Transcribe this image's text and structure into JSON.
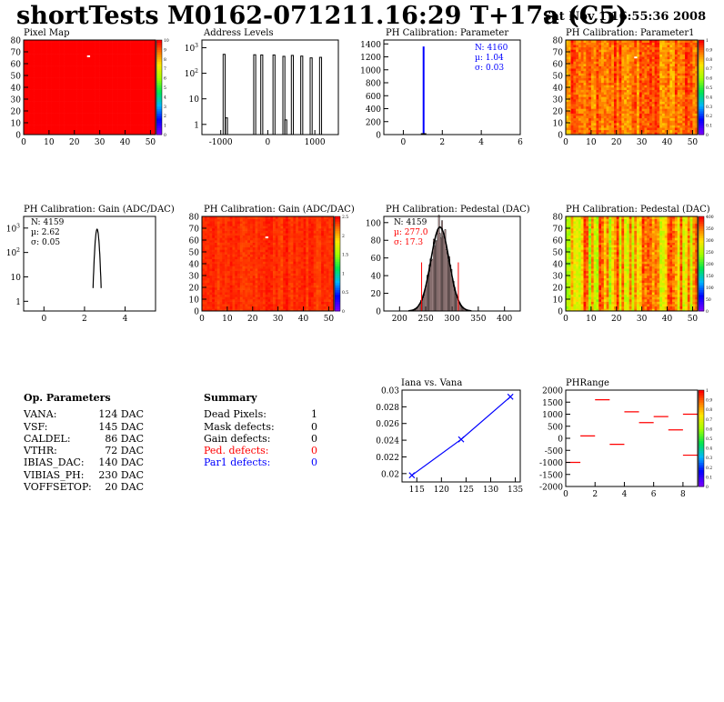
{
  "header": {
    "title": "shortTests M0162-071211.16:29 T+17a (C5)",
    "date": "Sat Nov  1 16:55:36 2008"
  },
  "colors": {
    "map_red": "#ff0000",
    "hist_black": "#000000",
    "fit_blue": "#0000ff",
    "red_text": "#ff0000",
    "blue_text": "#0000ff"
  },
  "panels": {
    "pixel_map": {
      "title": "Pixel Map",
      "type": "heatmap",
      "x_ticks": [
        "0",
        "10",
        "20",
        "30",
        "40",
        "50"
      ],
      "y_ticks": [
        "0",
        "10",
        "20",
        "30",
        "40",
        "50",
        "60",
        "70",
        "80"
      ],
      "z_ticks": [
        "0",
        "1",
        "2",
        "3",
        "4",
        "5",
        "6",
        "7",
        "8",
        "9",
        "10"
      ]
    },
    "address_levels": {
      "title": "Address Levels",
      "type": "bar",
      "x_ticks": [
        "-1000",
        "0",
        "1000"
      ],
      "y_ticks": [
        "1",
        "10",
        "10^2",
        "10^3"
      ],
      "peaks": [
        {
          "x": -880,
          "y": 1.8
        },
        {
          "x": -930,
          "y": 550
        },
        {
          "x": -280,
          "y": 530
        },
        {
          "x": -130,
          "y": 520
        },
        {
          "x": 130,
          "y": 520
        },
        {
          "x": 340,
          "y": 460
        },
        {
          "x": 520,
          "y": 500
        },
        {
          "x": 720,
          "y": 470
        },
        {
          "x": 920,
          "y": 400
        },
        {
          "x": 1120,
          "y": 420
        },
        {
          "x": 380,
          "y": 1.5
        }
      ]
    },
    "ph_param": {
      "title": "PH Calibration: Parameter",
      "type": "bar",
      "x_ticks": [
        "0",
        "2",
        "4",
        "6"
      ],
      "y_ticks": [
        "0",
        "200",
        "400",
        "600",
        "800",
        "1000",
        "1200",
        "1400"
      ],
      "stats": {
        "n": "N: 4160",
        "mu": "µ: 1.04",
        "sigma": "σ: 0.03"
      },
      "peak": {
        "x": 1.04,
        "y": 1360
      }
    },
    "ph_param1": {
      "title": "PH Calibration: Parameter1",
      "type": "heatmap",
      "x_ticks": [
        "0",
        "10",
        "20",
        "30",
        "40",
        "50"
      ],
      "y_ticks": [
        "0",
        "10",
        "20",
        "30",
        "40",
        "50",
        "60",
        "70",
        "80"
      ],
      "z_ticks": [
        "0",
        "0.1",
        "0.2",
        "0.3",
        "0.4",
        "0.5",
        "0.6",
        "0.7",
        "0.8",
        "0.9",
        "1"
      ]
    },
    "gain_hist": {
      "title": "PH Calibration: Gain (ADC/DAC)",
      "type": "bar",
      "x_ticks": [
        "0",
        "2",
        "4"
      ],
      "y_ticks": [
        "1",
        "10",
        "10^2",
        "10^3"
      ],
      "stats": {
        "n": "N: 4159",
        "mu": "µ: 2.62",
        "sigma": "σ: 0.05"
      },
      "peak": {
        "x": 2.62,
        "y": 900
      }
    },
    "gain_map": {
      "title": "PH Calibration: Gain (ADC/DAC)",
      "type": "heatmap",
      "x_ticks": [
        "0",
        "10",
        "20",
        "30",
        "40",
        "50"
      ],
      "y_ticks": [
        "0",
        "10",
        "20",
        "30",
        "40",
        "50",
        "60",
        "70",
        "80"
      ],
      "z_ticks": [
        "0",
        "0.5",
        "1",
        "1.5",
        "2",
        "2.5"
      ]
    },
    "pedestal_hist": {
      "title": "PH Calibration: Pedestal (DAC)",
      "type": "bar",
      "x_ticks": [
        "200",
        "250",
        "300",
        "350",
        "400"
      ],
      "y_ticks": [
        "0",
        "20",
        "40",
        "60",
        "80",
        "100"
      ],
      "stats": {
        "n": "N: 4159",
        "mu": "µ: 277.0",
        "sigma": "σ: 17.3"
      },
      "mean": 277.0,
      "sigma": 17.3,
      "amplitude": 95,
      "cut_lines": [
        242,
        312
      ]
    },
    "pedestal_map": {
      "title": "PH Calibration: Pedestal (DAC)",
      "type": "heatmap",
      "x_ticks": [
        "0",
        "10",
        "20",
        "30",
        "40",
        "50"
      ],
      "y_ticks": [
        "0",
        "10",
        "20",
        "30",
        "40",
        "50",
        "60",
        "70",
        "80"
      ],
      "z_ticks": [
        "0",
        "50",
        "100",
        "150",
        "200",
        "250",
        "300",
        "350",
        "400"
      ]
    },
    "iana_vana": {
      "title": "Iana vs. Vana",
      "type": "line",
      "x_ticks": [
        "115",
        "120",
        "125",
        "130",
        "135"
      ],
      "y_ticks": [
        "0.02",
        "0.022",
        "0.024",
        "0.026",
        "0.028",
        "0.03"
      ],
      "points": [
        {
          "x": 114,
          "y": 0.0198
        },
        {
          "x": 124,
          "y": 0.0241
        },
        {
          "x": 134,
          "y": 0.0292
        }
      ]
    },
    "phrange": {
      "title": "PHRange",
      "type": "scatter",
      "x_ticks": [
        "0",
        "2",
        "4",
        "6",
        "8"
      ],
      "y_ticks": [
        "-2000",
        "-1500",
        "-1000",
        "-500",
        "0",
        "500",
        "1000",
        "1500",
        "2000"
      ],
      "z_ticks": [
        "0",
        "0.1",
        "0.2",
        "0.3",
        "0.4",
        "0.5",
        "0.6",
        "0.7",
        "0.8",
        "0.9",
        "1"
      ],
      "segments": [
        {
          "x": 0,
          "y": -1000
        },
        {
          "x": 1,
          "y": 100
        },
        {
          "x": 2,
          "y": 1600
        },
        {
          "x": 3,
          "y": -250
        },
        {
          "x": 4,
          "y": 1100
        },
        {
          "x": 5,
          "y": 650
        },
        {
          "x": 6,
          "y": 900
        },
        {
          "x": 7,
          "y": 350
        },
        {
          "x": 8,
          "y": -700
        },
        {
          "x": 8,
          "y": 1000
        }
      ]
    }
  },
  "op_params": {
    "heading": "Op. Parameters",
    "rows": [
      {
        "name": "VANA:",
        "value": "124 DAC"
      },
      {
        "name": "VSF:",
        "value": "145 DAC"
      },
      {
        "name": "CALDEL:",
        "value": "86 DAC"
      },
      {
        "name": "VTHR:",
        "value": "72 DAC"
      },
      {
        "name": "IBIAS_DAC:",
        "value": "140 DAC"
      },
      {
        "name": "VIBIAS_PH:",
        "value": "230 DAC"
      },
      {
        "name": "VOFFSETOP:",
        "value": "20 DAC"
      }
    ]
  },
  "summary": {
    "heading": "Summary",
    "rows": [
      {
        "name": "Dead Pixels:",
        "value": "1",
        "color": "#000000"
      },
      {
        "name": "Mask defects:",
        "value": "0",
        "color": "#000000"
      },
      {
        "name": "Gain defects:",
        "value": "0",
        "color": "#000000"
      },
      {
        "name": "Ped. defects:",
        "value": "0",
        "color": "#ff0000"
      },
      {
        "name": "Par1 defects:",
        "value": "0",
        "color": "#0000ff"
      }
    ]
  }
}
